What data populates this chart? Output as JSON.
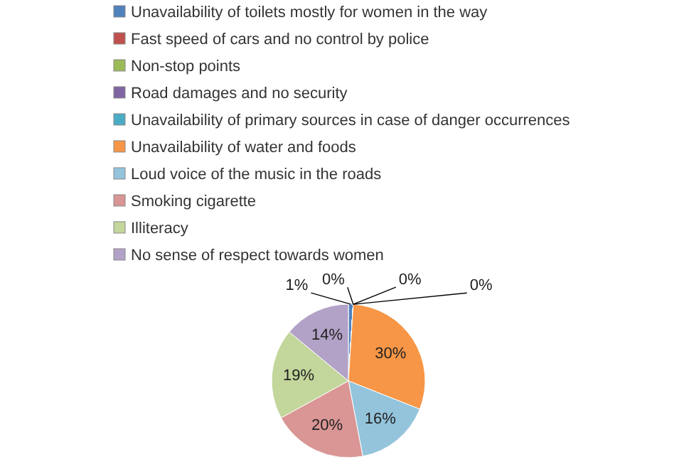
{
  "chart_data": {
    "type": "pie",
    "categories": [
      "Unavailability of toilets mostly for women in the way",
      "Fast speed of cars and no control by police",
      "Non-stop points",
      "Road damages and no security",
      "Unavailability of primary sources in case of danger occurrences",
      "Unavailability of water and foods",
      "Loud voice of the music in the roads",
      "Smoking cigarette",
      "Illiteracy",
      "No sense of respect towards women"
    ],
    "values": [
      1,
      0,
      0,
      0,
      0,
      30,
      16,
      20,
      19,
      14
    ],
    "colors": [
      "#4f81bd",
      "#c0504d",
      "#9bbb59",
      "#8064a2",
      "#4bacc6",
      "#f79646",
      "#93c4dc",
      "#d99694",
      "#c3d69b",
      "#b3a2c7"
    ],
    "value_labels": [
      "1%",
      "0%",
      "0%",
      "0%",
      null,
      "30%",
      "16%",
      "20%",
      "19%",
      "14%"
    ],
    "legend": "top"
  }
}
